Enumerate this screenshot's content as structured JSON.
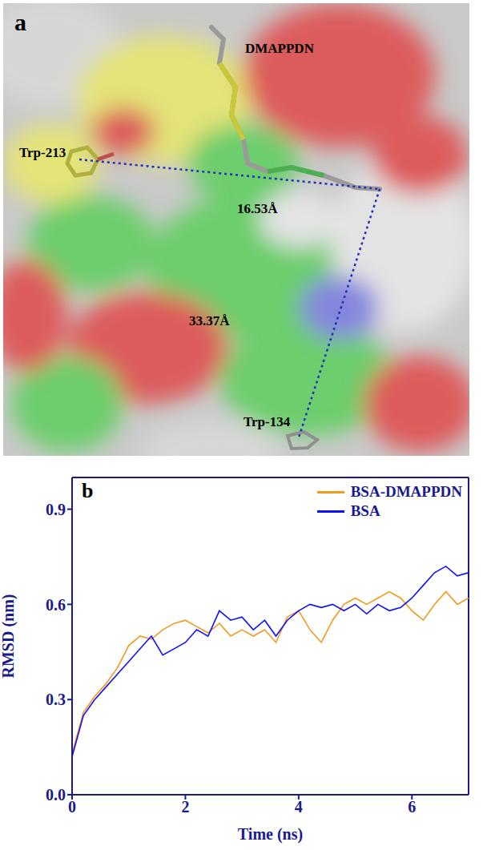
{
  "panel_a": {
    "letter": "a",
    "labels": {
      "ligand": "DMAPPDN",
      "residue_1": "Trp-213",
      "residue_2": "Trp-134"
    },
    "distances": {
      "ligand_to_residue_1": "16.53Å",
      "ligand_to_residue_2": "33.37Å"
    }
  },
  "chart_data": {
    "type": "line",
    "title": "b",
    "x_label": "Time (ns)",
    "y_label": "RMSD (nm)",
    "x": [
      0,
      0.2,
      0.4,
      0.6,
      0.8,
      1.0,
      1.2,
      1.4,
      1.6,
      1.8,
      2.0,
      2.2,
      2.4,
      2.6,
      2.8,
      3.0,
      3.2,
      3.4,
      3.6,
      3.8,
      4.0,
      4.2,
      4.4,
      4.6,
      4.8,
      5.0,
      5.2,
      5.4,
      5.6,
      5.8,
      6.0,
      6.2,
      6.4,
      6.6,
      6.8,
      7.0
    ],
    "series": [
      {
        "name": "BSA-DMAPPDN",
        "color": "#f39a1e",
        "values": [
          0.13,
          0.26,
          0.31,
          0.35,
          0.4,
          0.47,
          0.5,
          0.49,
          0.52,
          0.54,
          0.55,
          0.53,
          0.51,
          0.54,
          0.5,
          0.52,
          0.5,
          0.52,
          0.48,
          0.56,
          0.58,
          0.52,
          0.48,
          0.55,
          0.6,
          0.62,
          0.6,
          0.62,
          0.64,
          0.62,
          0.58,
          0.55,
          0.6,
          0.64,
          0.6,
          0.62
        ]
      },
      {
        "name": "BSA",
        "color": "#1010ff",
        "values": [
          0.12,
          0.25,
          0.3,
          0.34,
          0.38,
          0.42,
          0.46,
          0.5,
          0.44,
          0.46,
          0.48,
          0.52,
          0.5,
          0.58,
          0.55,
          0.56,
          0.52,
          0.55,
          0.5,
          0.55,
          0.58,
          0.6,
          0.59,
          0.6,
          0.58,
          0.6,
          0.57,
          0.6,
          0.58,
          0.59,
          0.62,
          0.66,
          0.7,
          0.72,
          0.69,
          0.7
        ]
      }
    ],
    "xlim": [
      0,
      7
    ],
    "xticks": [
      0,
      2,
      4,
      6
    ],
    "ylim": [
      0,
      1.0
    ],
    "yticks": [
      {
        "value": 0,
        "label": "0.0"
      },
      0.3,
      0.6,
      0.9
    ],
    "legend": "top-right",
    "grid": false
  }
}
